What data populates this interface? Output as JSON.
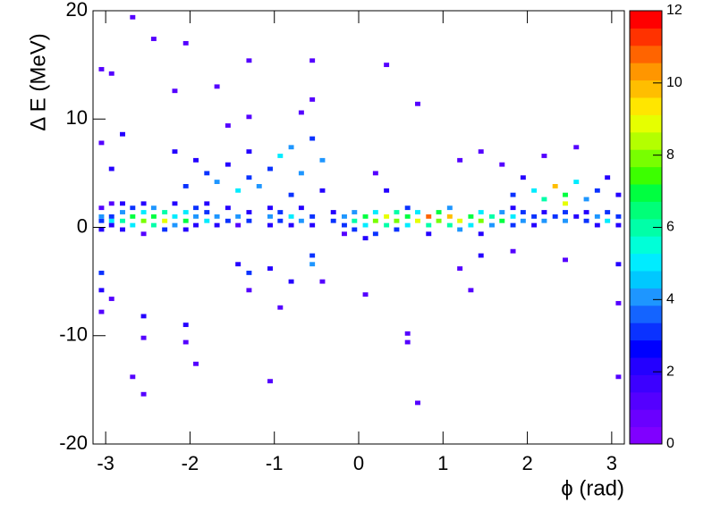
{
  "chart_data": {
    "type": "heatmap",
    "xlabel": "ϕ (rad)",
    "ylabel": "Δ E (MeV)",
    "xlim": [
      -3.15,
      3.15
    ],
    "xticks": [
      -3,
      -2,
      -1,
      0,
      1,
      2,
      3
    ],
    "ylim": [
      -20,
      20
    ],
    "yticks": [
      -20,
      -10,
      0,
      10,
      20
    ],
    "zlim": [
      0,
      12
    ],
    "zticks": [
      0,
      2,
      4,
      6,
      8,
      10,
      12
    ],
    "palette": [
      "#8000ff",
      "#6a00ff",
      "#5400ff",
      "#3c00ff",
      "#2400ff",
      "#0000ff",
      "#0a32ff",
      "#1464ff",
      "#1e96ff",
      "#00c8ff",
      "#00ecff",
      "#00ffd8",
      "#00ffa8",
      "#00ff78",
      "#00ff40",
      "#3cff00",
      "#78ff00",
      "#b4ff00",
      "#e6ff00",
      "#ffe600",
      "#ffbe00",
      "#ff9600",
      "#ff6400",
      "#ff3200",
      "#ff0000"
    ],
    "cells": [
      [
        -3.05,
        0.6,
        3
      ],
      [
        -3.05,
        1.0,
        4
      ],
      [
        -3.05,
        -0.2,
        2
      ],
      [
        -3.05,
        1.8,
        1
      ],
      [
        -2.93,
        0.6,
        5
      ],
      [
        -2.93,
        1.0,
        3
      ],
      [
        -2.93,
        0.2,
        2
      ],
      [
        -2.93,
        2.2,
        1
      ],
      [
        -2.8,
        0.6,
        6
      ],
      [
        -2.8,
        1.4,
        4
      ],
      [
        -2.8,
        -0.2,
        2
      ],
      [
        -2.8,
        2.2,
        2
      ],
      [
        -2.68,
        0.2,
        5
      ],
      [
        -2.68,
        1.0,
        7
      ],
      [
        -2.68,
        1.8,
        3
      ],
      [
        -2.55,
        0.6,
        8
      ],
      [
        -2.55,
        1.4,
        5
      ],
      [
        -2.55,
        -0.6,
        1
      ],
      [
        -2.55,
        2.2,
        2
      ],
      [
        -2.43,
        0.2,
        6
      ],
      [
        -2.43,
        1.0,
        7
      ],
      [
        -2.43,
        1.8,
        4
      ],
      [
        -2.3,
        0.6,
        9
      ],
      [
        -2.3,
        1.4,
        6
      ],
      [
        -2.3,
        -0.2,
        3
      ],
      [
        -2.18,
        0.2,
        4
      ],
      [
        -2.18,
        1.0,
        5
      ],
      [
        -2.18,
        2.2,
        2
      ],
      [
        -2.05,
        0.6,
        7
      ],
      [
        -2.05,
        1.4,
        5
      ],
      [
        -2.05,
        -0.2,
        2
      ],
      [
        -1.93,
        1.0,
        4
      ],
      [
        -1.93,
        0.2,
        2
      ],
      [
        -1.93,
        1.8,
        3
      ],
      [
        -1.8,
        0.6,
        5
      ],
      [
        -1.8,
        1.4,
        3
      ],
      [
        -1.8,
        2.2,
        2
      ],
      [
        -1.68,
        1.0,
        4
      ],
      [
        -1.68,
        0.2,
        2
      ],
      [
        -1.55,
        0.6,
        3
      ],
      [
        -1.55,
        1.8,
        2
      ],
      [
        -1.43,
        1.0,
        4
      ],
      [
        -1.43,
        0.2,
        1
      ],
      [
        -1.3,
        0.6,
        3
      ],
      [
        -1.3,
        1.4,
        2
      ],
      [
        -1.05,
        1.0,
        4
      ],
      [
        -1.05,
        0.2,
        2
      ],
      [
        -1.05,
        1.8,
        2
      ],
      [
        -0.93,
        0.6,
        3
      ],
      [
        -0.93,
        1.4,
        3
      ],
      [
        -0.8,
        1.0,
        5
      ],
      [
        -0.8,
        0.2,
        2
      ],
      [
        -0.68,
        0.6,
        4
      ],
      [
        -0.68,
        1.8,
        2
      ],
      [
        -0.55,
        1.0,
        3
      ],
      [
        -0.55,
        0.2,
        2
      ],
      [
        -0.3,
        0.6,
        3
      ],
      [
        -0.3,
        1.4,
        2
      ],
      [
        -0.17,
        1.0,
        4
      ],
      [
        -0.17,
        0.2,
        3
      ],
      [
        -0.17,
        -0.6,
        1
      ],
      [
        -0.05,
        0.6,
        6
      ],
      [
        -0.05,
        1.4,
        4
      ],
      [
        -0.05,
        -0.2,
        3
      ],
      [
        0.08,
        1.0,
        7
      ],
      [
        0.08,
        0.2,
        5
      ],
      [
        0.08,
        -1.0,
        2
      ],
      [
        0.2,
        0.6,
        8
      ],
      [
        0.2,
        1.4,
        5
      ],
      [
        0.2,
        -0.6,
        3
      ],
      [
        0.33,
        1.0,
        9
      ],
      [
        0.33,
        0.2,
        6
      ],
      [
        0.45,
        0.6,
        8
      ],
      [
        0.45,
        1.4,
        6
      ],
      [
        0.45,
        -0.2,
        3
      ],
      [
        0.58,
        1.0,
        7
      ],
      [
        0.58,
        0.2,
        5
      ],
      [
        0.58,
        1.8,
        3
      ],
      [
        0.7,
        0.6,
        9
      ],
      [
        0.7,
        1.4,
        5
      ],
      [
        0.83,
        1.0,
        11
      ],
      [
        0.83,
        0.2,
        6
      ],
      [
        0.83,
        -0.6,
        2
      ],
      [
        0.95,
        0.6,
        8
      ],
      [
        0.95,
        1.4,
        7
      ],
      [
        1.08,
        1.0,
        10
      ],
      [
        1.08,
        0.2,
        6
      ],
      [
        1.08,
        1.8,
        4
      ],
      [
        1.2,
        0.6,
        9
      ],
      [
        1.2,
        -0.2,
        4
      ],
      [
        1.33,
        1.0,
        7
      ],
      [
        1.33,
        0.2,
        5
      ],
      [
        1.45,
        0.6,
        8
      ],
      [
        1.45,
        1.4,
        5
      ],
      [
        1.45,
        -0.6,
        2
      ],
      [
        1.58,
        1.0,
        6
      ],
      [
        1.58,
        0.2,
        4
      ],
      [
        1.7,
        0.6,
        7
      ],
      [
        1.7,
        1.4,
        4
      ],
      [
        1.83,
        1.0,
        5
      ],
      [
        1.83,
        0.2,
        3
      ],
      [
        1.83,
        1.8,
        2
      ],
      [
        1.95,
        0.6,
        4
      ],
      [
        1.95,
        1.4,
        3
      ],
      [
        2.08,
        1.0,
        3
      ],
      [
        2.08,
        0.2,
        2
      ],
      [
        2.2,
        0.6,
        4
      ],
      [
        2.2,
        1.4,
        2
      ],
      [
        2.33,
        1.0,
        3
      ],
      [
        2.45,
        0.6,
        4
      ],
      [
        2.45,
        1.4,
        3
      ],
      [
        2.58,
        1.0,
        2
      ],
      [
        2.7,
        0.6,
        3
      ],
      [
        2.7,
        1.4,
        2
      ],
      [
        2.83,
        1.0,
        4
      ],
      [
        2.83,
        0.2,
        2
      ],
      [
        2.95,
        0.6,
        5
      ],
      [
        2.95,
        1.4,
        3
      ],
      [
        3.08,
        1.0,
        3
      ],
      [
        3.08,
        0.2,
        2
      ],
      [
        -1.8,
        5.0,
        3
      ],
      [
        -1.68,
        4.2,
        4
      ],
      [
        -1.55,
        5.8,
        2
      ],
      [
        -1.43,
        3.4,
        5
      ],
      [
        -1.3,
        4.6,
        3
      ],
      [
        -1.3,
        7.0,
        2
      ],
      [
        -1.18,
        3.8,
        4
      ],
      [
        -1.05,
        5.4,
        3
      ],
      [
        -0.93,
        6.6,
        5
      ],
      [
        -0.8,
        7.4,
        4
      ],
      [
        -0.8,
        3.0,
        3
      ],
      [
        -0.68,
        5.0,
        4
      ],
      [
        -0.55,
        8.2,
        3
      ],
      [
        -0.43,
        6.2,
        4
      ],
      [
        -0.43,
        3.4,
        2
      ],
      [
        -1.93,
        6.2,
        2
      ],
      [
        -2.05,
        3.8,
        3
      ],
      [
        -2.18,
        7.0,
        2
      ],
      [
        -1.55,
        9.4,
        1
      ],
      [
        -1.3,
        10.2,
        1
      ],
      [
        -0.68,
        10.6,
        1
      ],
      [
        -0.55,
        11.8,
        1
      ],
      [
        1.83,
        3.0,
        3
      ],
      [
        1.95,
        4.6,
        2
      ],
      [
        2.08,
        3.4,
        5
      ],
      [
        2.2,
        2.6,
        6
      ],
      [
        2.33,
        3.8,
        10
      ],
      [
        2.45,
        3.0,
        7
      ],
      [
        2.58,
        4.2,
        5
      ],
      [
        2.7,
        2.6,
        4
      ],
      [
        2.83,
        3.4,
        3
      ],
      [
        2.95,
        4.6,
        2
      ],
      [
        3.08,
        3.0,
        2
      ],
      [
        2.45,
        2.2,
        9
      ],
      [
        1.7,
        5.8,
        1
      ],
      [
        2.2,
        6.6,
        1
      ],
      [
        2.58,
        7.4,
        1
      ],
      [
        1.2,
        6.2,
        1
      ],
      [
        1.45,
        7.0,
        1
      ],
      [
        0.33,
        3.4,
        2
      ],
      [
        0.2,
        5.0,
        1
      ],
      [
        -3.05,
        7.8,
        1
      ],
      [
        -2.93,
        5.4,
        2
      ],
      [
        -2.8,
        8.6,
        2
      ],
      [
        -2.93,
        14.2,
        1
      ],
      [
        -3.05,
        14.6,
        1
      ],
      [
        -2.68,
        19.4,
        1
      ],
      [
        -2.05,
        17.0,
        1
      ],
      [
        -2.43,
        17.4,
        1
      ],
      [
        -1.3,
        15.4,
        1
      ],
      [
        -0.55,
        15.4,
        1
      ],
      [
        0.33,
        15.0,
        1
      ],
      [
        -2.18,
        12.6,
        1
      ],
      [
        -1.68,
        13.0,
        1
      ],
      [
        0.7,
        11.4,
        1
      ],
      [
        -3.05,
        -4.2,
        3
      ],
      [
        -3.05,
        -5.8,
        2
      ],
      [
        -3.05,
        -7.8,
        1
      ],
      [
        -2.93,
        -6.6,
        1
      ],
      [
        -2.55,
        -8.2,
        2
      ],
      [
        -2.55,
        -10.2,
        1
      ],
      [
        -2.68,
        -13.8,
        1
      ],
      [
        -2.55,
        -15.4,
        1
      ],
      [
        -2.05,
        -9.0,
        2
      ],
      [
        -2.05,
        -10.6,
        1
      ],
      [
        -1.93,
        -12.6,
        1
      ],
      [
        -1.43,
        -3.4,
        2
      ],
      [
        -1.3,
        -4.2,
        3
      ],
      [
        -1.3,
        -5.8,
        1
      ],
      [
        -1.05,
        -3.8,
        2
      ],
      [
        -0.8,
        -5.0,
        2
      ],
      [
        -0.55,
        -2.6,
        3
      ],
      [
        -0.55,
        -3.4,
        4
      ],
      [
        -0.43,
        -5.0,
        1
      ],
      [
        -1.05,
        -14.2,
        1
      ],
      [
        0.58,
        -9.8,
        1
      ],
      [
        0.58,
        -10.6,
        1
      ],
      [
        0.7,
        -16.2,
        1
      ],
      [
        1.2,
        -3.8,
        1
      ],
      [
        1.45,
        -2.6,
        2
      ],
      [
        1.83,
        -2.2,
        1
      ],
      [
        1.33,
        -5.8,
        1
      ],
      [
        2.45,
        -3.0,
        1
      ],
      [
        3.08,
        -3.4,
        2
      ],
      [
        3.08,
        -7.0,
        1
      ],
      [
        3.08,
        -13.8,
        1
      ],
      [
        0.08,
        -6.2,
        1
      ],
      [
        -0.93,
        -7.4,
        1
      ]
    ]
  }
}
